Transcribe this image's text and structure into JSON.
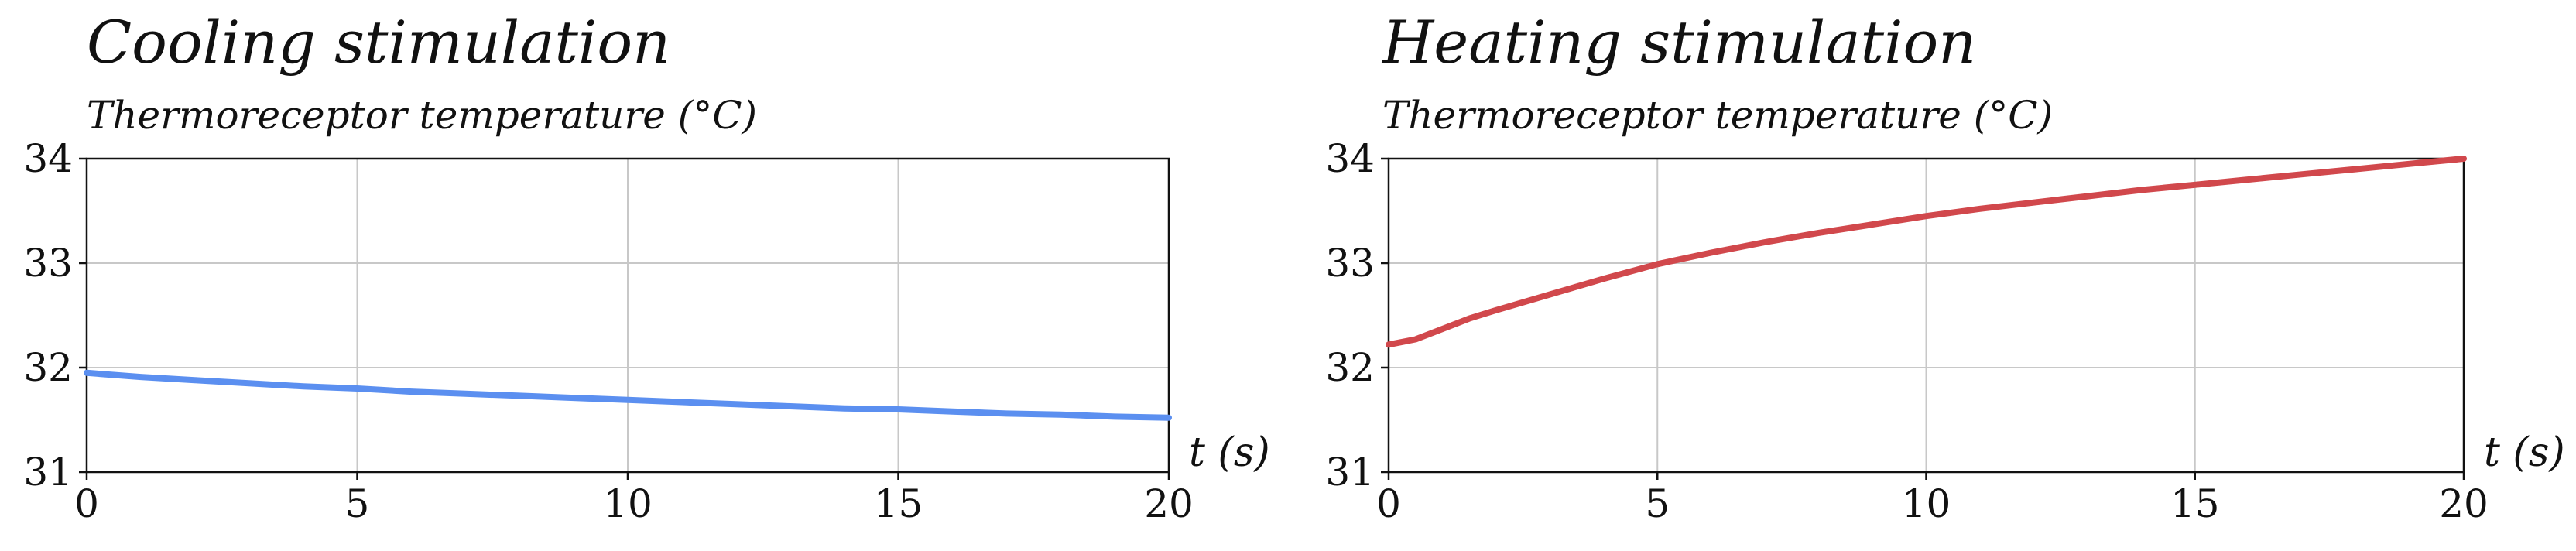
{
  "chart_data": [
    {
      "type": "line",
      "title": "Cooling stimulation",
      "subtitle": "Thermoreceptor temperature (°C)",
      "xlabel": "t (s)",
      "ylabel": "",
      "xlim": [
        0,
        20
      ],
      "ylim": [
        31,
        34
      ],
      "xticks": [
        "0",
        "5",
        "10",
        "15",
        "20"
      ],
      "yticks": [
        "31",
        "32",
        "33",
        "34"
      ],
      "grid": true,
      "color": "#5b8ff0",
      "series": [
        {
          "x": [
            0,
            0.5,
            1,
            2,
            3,
            4,
            5,
            6,
            7,
            8,
            9,
            10,
            11,
            12,
            13,
            14,
            15,
            16,
            17,
            18,
            19,
            20
          ],
          "y": [
            31.95,
            31.93,
            31.91,
            31.88,
            31.85,
            31.82,
            31.8,
            31.77,
            31.75,
            31.73,
            31.71,
            31.69,
            31.67,
            31.65,
            31.63,
            31.61,
            31.6,
            31.58,
            31.56,
            31.55,
            31.53,
            31.52
          ]
        }
      ]
    },
    {
      "type": "line",
      "title": "Heating stimulation",
      "subtitle": "Thermoreceptor temperature (°C)",
      "xlabel": "t (s)",
      "ylabel": "",
      "xlim": [
        0,
        20
      ],
      "ylim": [
        31,
        34
      ],
      "xticks": [
        "0",
        "5",
        "10",
        "15",
        "20"
      ],
      "yticks": [
        "31",
        "32",
        "33",
        "34"
      ],
      "grid": true,
      "color": "#d1484c",
      "series": [
        {
          "x": [
            0,
            0.5,
            1,
            1.5,
            2,
            3,
            4,
            5,
            6,
            7,
            8,
            9,
            10,
            11,
            12,
            13,
            14,
            15,
            16,
            17,
            18,
            19,
            20
          ],
          "y": [
            32.22,
            32.27,
            32.37,
            32.47,
            32.55,
            32.7,
            32.85,
            32.99,
            33.1,
            33.2,
            33.29,
            33.37,
            33.45,
            33.52,
            33.58,
            33.64,
            33.7,
            33.75,
            33.8,
            33.85,
            33.9,
            33.95,
            34.0
          ]
        }
      ]
    }
  ]
}
